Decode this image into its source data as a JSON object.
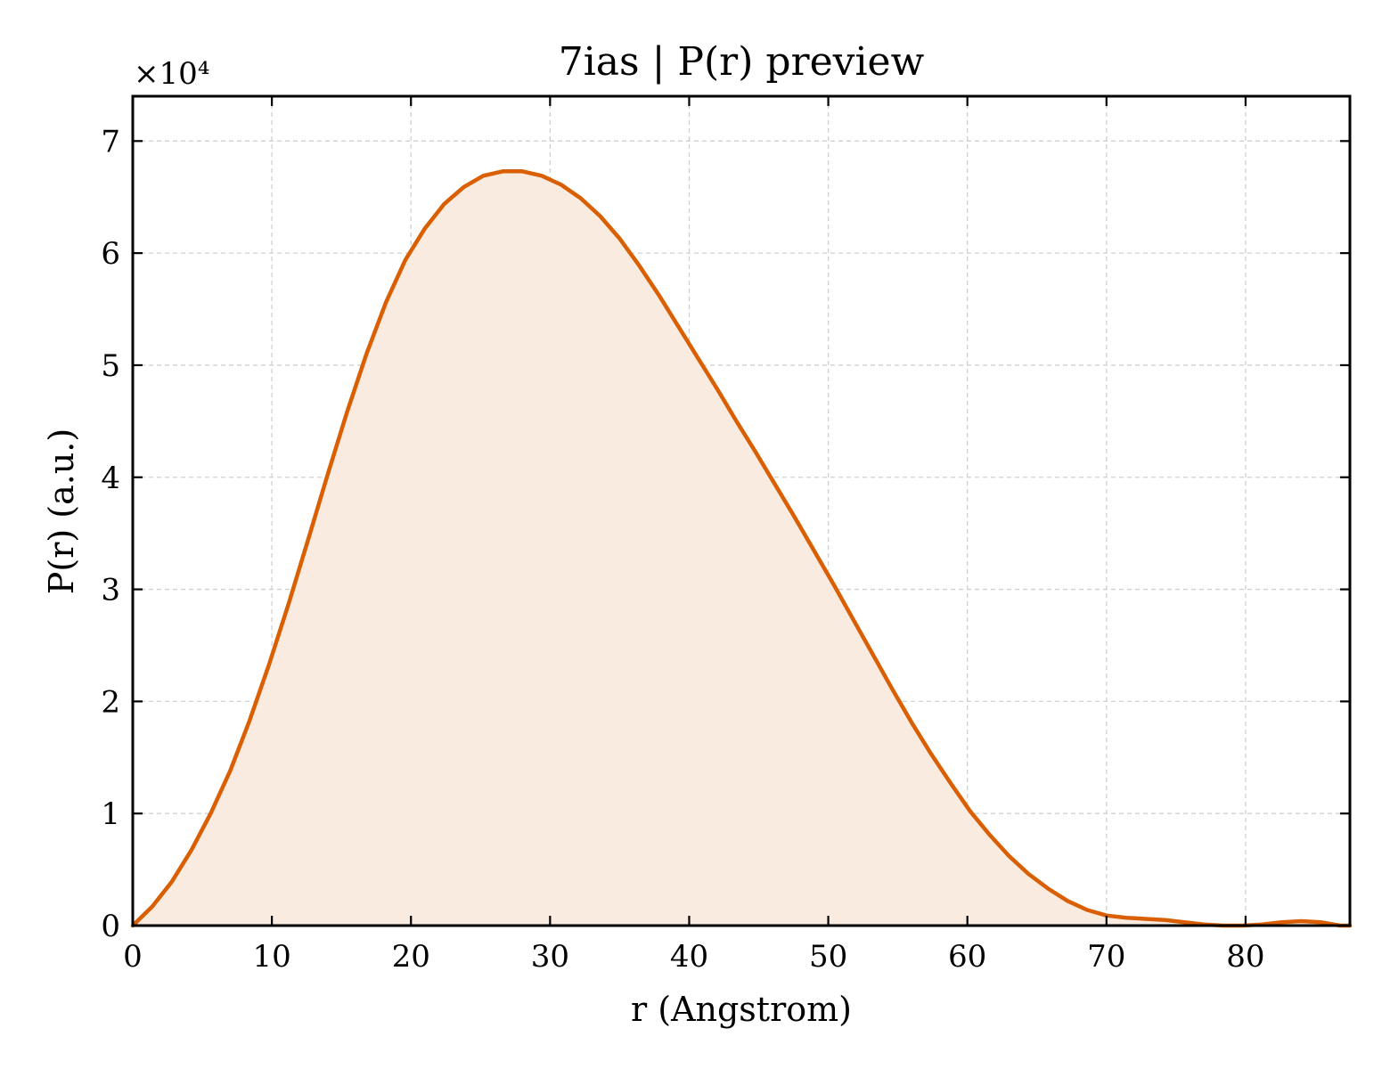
{
  "chart_data": {
    "type": "area",
    "title": "7ias | P(r) preview",
    "xlabel": "r (Angstrom)",
    "ylabel": "P(r) (a.u.)",
    "y_scale_label": "×10⁴",
    "xlim": [
      0,
      87.5
    ],
    "ylim": [
      0,
      74000
    ],
    "xticks": [
      0,
      10,
      20,
      30,
      40,
      50,
      60,
      70,
      80
    ],
    "yticks": [
      0,
      10000,
      20000,
      30000,
      40000,
      50000,
      60000,
      70000
    ],
    "ytick_labels": [
      "0",
      "1",
      "2",
      "3",
      "4",
      "5",
      "6",
      "7"
    ],
    "grid": true,
    "line_color": "#d95f02",
    "fill_color": "#f9ebe0",
    "series": [
      {
        "x": [
          0,
          1.4,
          2.8,
          4.2,
          5.6,
          7.0,
          8.4,
          9.8,
          11.2,
          12.6,
          14.0,
          15.4,
          16.8,
          18.2,
          19.6,
          21.0,
          22.4,
          23.8,
          25.2,
          26.6,
          28.0,
          29.4,
          30.8,
          32.2,
          33.6,
          35.0,
          36.4,
          37.8,
          39.2,
          40.6,
          42.0,
          43.4,
          44.8,
          46.2,
          47.6,
          49.0,
          50.4,
          51.8,
          53.2,
          54.6,
          56.0,
          57.4,
          58.8,
          60.2,
          61.6,
          63.0,
          64.4,
          65.8,
          67.2,
          68.6,
          70.0,
          71.4,
          72.8,
          74.2,
          75.6,
          77.0,
          78.4,
          79.8,
          81.2,
          82.6,
          84.0,
          85.4,
          86.8,
          87.5
        ],
        "y": [
          0,
          1700,
          3900,
          6700,
          10000,
          13800,
          18300,
          23300,
          28700,
          34400,
          40200,
          45800,
          51000,
          55600,
          59400,
          62200,
          64400,
          65900,
          66900,
          67300,
          67300,
          66900,
          66100,
          64900,
          63300,
          61300,
          58900,
          56300,
          53500,
          50700,
          47900,
          45000,
          42200,
          39300,
          36400,
          33400,
          30400,
          27300,
          24200,
          21100,
          18100,
          15300,
          12700,
          10200,
          8100,
          6200,
          4600,
          3300,
          2200,
          1400,
          900,
          700,
          600,
          500,
          300,
          100,
          0,
          0,
          100,
          300,
          400,
          300,
          0,
          0
        ]
      }
    ]
  }
}
